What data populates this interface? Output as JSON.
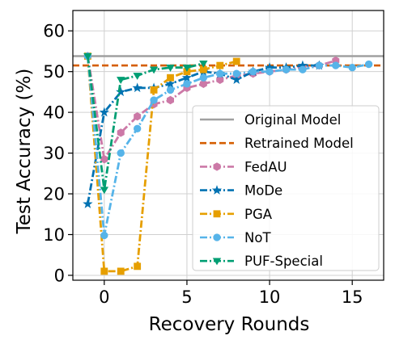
{
  "chart_data": {
    "type": "line",
    "xlabel": "Recovery Rounds",
    "ylabel": "Test Accuracy (%)",
    "xlim": [
      -1.9,
      16.9
    ],
    "ylim": [
      -1.2,
      65
    ],
    "xticks": [
      0,
      5,
      10,
      15
    ],
    "yticks": [
      0,
      10,
      20,
      30,
      40,
      50,
      60
    ],
    "grid": true,
    "legend_position": "lower-right",
    "reference_lines": [
      {
        "name": "Original Model",
        "value": 53.8,
        "color": "#a0a0a0",
        "style": "solid"
      },
      {
        "name": "Retrained Model",
        "value": 51.5,
        "color": "#d55e00",
        "style": "dashed"
      }
    ],
    "series": [
      {
        "name": "FedAU",
        "color": "#cc79a7",
        "marker": "hexagon",
        "style": "dashdot",
        "x": [
          -1,
          0,
          1,
          2,
          3,
          4,
          5,
          6,
          7,
          8,
          9,
          10,
          11,
          12,
          13,
          14
        ],
        "y": [
          53.8,
          28.5,
          35,
          39,
          42,
          43,
          46,
          47,
          48,
          49,
          49.5,
          50,
          50.5,
          51,
          51.5,
          52.7
        ]
      },
      {
        "name": "MoDe",
        "color": "#0072b2",
        "marker": "star",
        "style": "dashdot",
        "x": [
          -1,
          0,
          1,
          2,
          3,
          4,
          5,
          6,
          7,
          8,
          9,
          10,
          11,
          12,
          13
        ],
        "y": [
          17.5,
          40,
          45,
          46,
          46,
          47,
          48.5,
          50,
          49.5,
          48,
          50,
          51,
          51,
          51.5,
          51.5
        ]
      },
      {
        "name": "PGA",
        "color": "#e69f00",
        "marker": "square",
        "style": "dashdot",
        "x": [
          -1,
          0,
          1,
          2,
          3,
          4,
          5,
          6,
          7,
          8
        ],
        "y": [
          53.8,
          1,
          1,
          2.2,
          45.5,
          48.5,
          50,
          50.5,
          51.5,
          52.5
        ]
      },
      {
        "name": "NoT",
        "color": "#56b4e9",
        "marker": "circle",
        "style": "dashdot",
        "x": [
          -1,
          0,
          1,
          2,
          3,
          4,
          5,
          6,
          7,
          8,
          9,
          10,
          11,
          12,
          13,
          14,
          15,
          16
        ],
        "y": [
          53.8,
          9.8,
          30,
          36,
          43,
          45.5,
          47,
          48.5,
          49.5,
          49.5,
          50,
          50,
          50.5,
          50.5,
          51.5,
          51.5,
          51,
          51.8
        ]
      },
      {
        "name": "PUF-Special",
        "color": "#009e73",
        "marker": "triangle-down",
        "style": "dashdot",
        "x": [
          -1,
          0,
          1,
          2,
          3,
          4,
          5,
          6
        ],
        "y": [
          53.8,
          21,
          48,
          49,
          50.5,
          51,
          51,
          52
        ]
      }
    ]
  }
}
